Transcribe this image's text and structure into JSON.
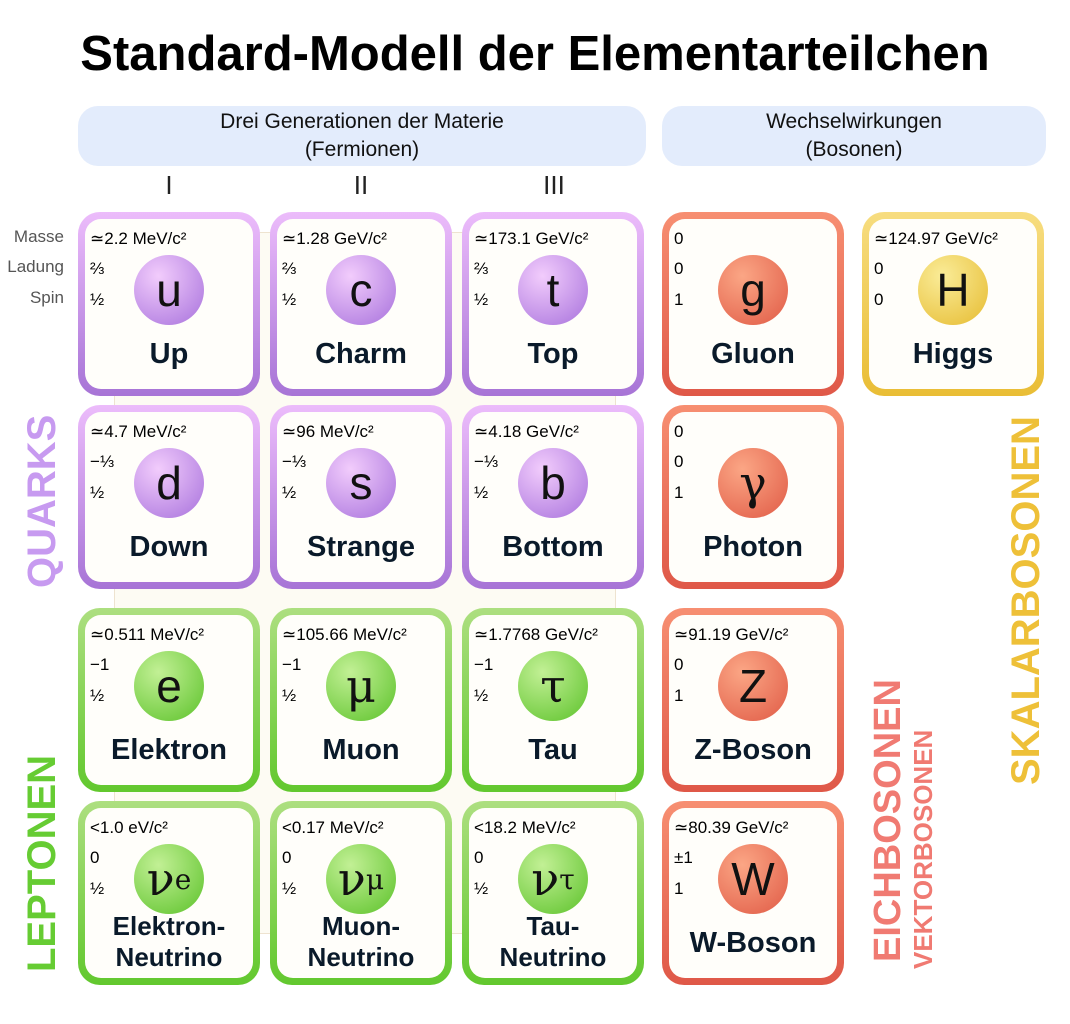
{
  "title": "Standard-Modell der Elementarteilchen",
  "headers": {
    "fermions": [
      "Drei Generationen der Materie",
      "(Fermionen)"
    ],
    "bosons": [
      "Wechselwirkungen",
      "(Bosonen)"
    ]
  },
  "generations": [
    "I",
    "II",
    "III"
  ],
  "row_labels": {
    "mass": "Masse",
    "charge": "Ladung",
    "spin": "Spin"
  },
  "group_labels": {
    "quarks": "QUARKS",
    "leptons": "LEPTONEN",
    "gauge": "EICHBOSONEN",
    "vector": "VEKTORBOSONEN",
    "scalar": "SKALARBOSONEN"
  },
  "colors": {
    "quark": "#b57fe0",
    "lepton": "#6fd03a",
    "gauge": "#e8664f",
    "higgs": "#ebc33e",
    "quark_label": "#c79af0",
    "lepton_label": "#66cc33",
    "gauge_label": "#f07a72",
    "scalar_label": "#eec038"
  },
  "particles": [
    {
      "type": "quark",
      "mass": "≃2.2 MeV/c²",
      "charge": "⅔",
      "spin": "½",
      "symbol": "u",
      "name": "Up"
    },
    {
      "type": "quark",
      "mass": "≃1.28 GeV/c²",
      "charge": "⅔",
      "spin": "½",
      "symbol": "c",
      "name": "Charm"
    },
    {
      "type": "quark",
      "mass": "≃173.1 GeV/c²",
      "charge": "⅔",
      "spin": "½",
      "symbol": "t",
      "name": "Top"
    },
    {
      "type": "gauge",
      "mass": "0",
      "charge": "0",
      "spin": "1",
      "symbol": "g",
      "name": "Gluon"
    },
    {
      "type": "higgs",
      "mass": "≃124.97 GeV/c²",
      "charge": "0",
      "spin": "0",
      "symbol": "H",
      "name": "Higgs"
    },
    {
      "type": "quark",
      "mass": "≃4.7 MeV/c²",
      "charge": "−⅓",
      "spin": "½",
      "symbol": "d",
      "name": "Down"
    },
    {
      "type": "quark",
      "mass": "≃96 MeV/c²",
      "charge": "−⅓",
      "spin": "½",
      "symbol": "s",
      "name": "Strange"
    },
    {
      "type": "quark",
      "mass": "≃4.18 GeV/c²",
      "charge": "−⅓",
      "spin": "½",
      "symbol": "b",
      "name": "Bottom"
    },
    {
      "type": "gauge",
      "mass": "0",
      "charge": "0",
      "spin": "1",
      "symbol": "γ",
      "name": "Photon"
    },
    {
      "type": "lepton",
      "mass": "≃0.511 MeV/c²",
      "charge": "−1",
      "spin": "½",
      "symbol": "e",
      "name": "Elektron"
    },
    {
      "type": "lepton",
      "mass": "≃105.66 MeV/c²",
      "charge": "−1",
      "spin": "½",
      "symbol": "μ",
      "name": "Muon"
    },
    {
      "type": "lepton",
      "mass": "≃1.7768 GeV/c²",
      "charge": "−1",
      "spin": "½",
      "symbol": "τ",
      "name": "Tau"
    },
    {
      "type": "gauge",
      "mass": "≃91.19 GeV/c²",
      "charge": "0",
      "spin": "1",
      "symbol": "Z",
      "name": "Z-Boson"
    },
    {
      "type": "lepton",
      "mass": "<1.0 eV/c²",
      "charge": "0",
      "spin": "½",
      "symbol": "ν",
      "sub": "e",
      "name": "Elektron-",
      "name2": "Neutrino"
    },
    {
      "type": "lepton",
      "mass": "<0.17 MeV/c²",
      "charge": "0",
      "spin": "½",
      "symbol": "ν",
      "sub": "μ",
      "name": "Muon-",
      "name2": "Neutrino"
    },
    {
      "type": "lepton",
      "mass": "<18.2 MeV/c²",
      "charge": "0",
      "spin": "½",
      "symbol": "ν",
      "sub": "τ",
      "name": "Tau-",
      "name2": "Neutrino"
    },
    {
      "type": "gauge",
      "mass": "≃80.39 GeV/c²",
      "charge": "±1",
      "spin": "1",
      "symbol": "W",
      "name": "W-Boson"
    }
  ]
}
